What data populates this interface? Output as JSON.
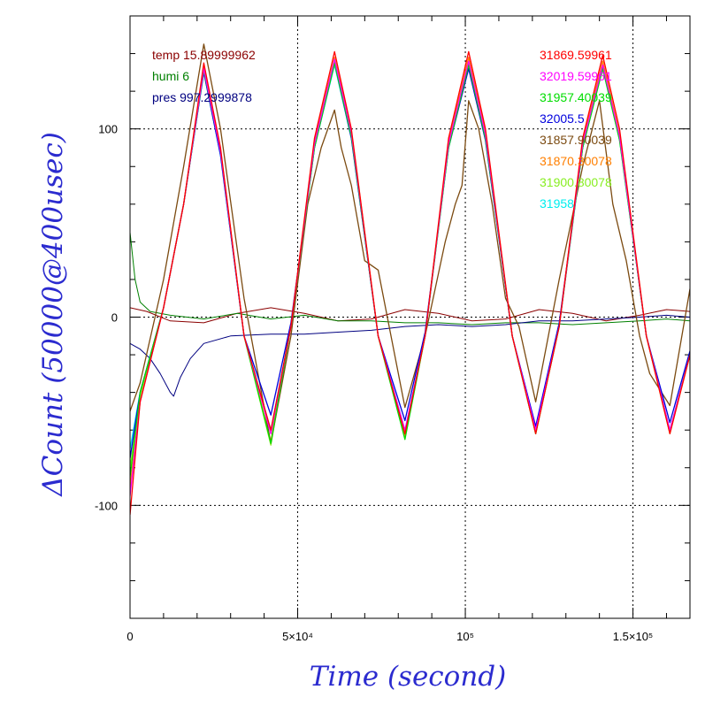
{
  "chart_data": {
    "type": "line",
    "xlabel": "Time (second)",
    "ylabel": "ΔCount (50000@400usec)",
    "xlim": [
      0,
      167000
    ],
    "ylim": [
      -160,
      160
    ],
    "grid": true,
    "x_ticks": [
      {
        "value": 0,
        "label": "0"
      },
      {
        "value": 50000,
        "label": "5×10⁴"
      },
      {
        "value": 100000,
        "label": "10⁵"
      },
      {
        "value": 150000,
        "label": "1.5×10⁵"
      }
    ],
    "y_ticks": [
      {
        "value": -100,
        "label": "-100"
      },
      {
        "value": 0,
        "label": "0"
      },
      {
        "value": 100,
        "label": "100"
      }
    ],
    "env_legend": [
      {
        "label": "temp 15.89999962",
        "color": "#8b0000"
      },
      {
        "label": "humi 6",
        "color": "#008000"
      },
      {
        "label": "pres 997.2999878",
        "color": "#000080"
      }
    ],
    "series": [
      {
        "name": "31869.59961",
        "color": "#ff0000",
        "points": [
          [
            0,
            -105
          ],
          [
            3000,
            -45
          ],
          [
            10000,
            5
          ],
          [
            16000,
            60
          ],
          [
            22000,
            135
          ],
          [
            27000,
            90
          ],
          [
            34000,
            -10
          ],
          [
            42000,
            -60
          ],
          [
            48000,
            -5
          ],
          [
            55000,
            95
          ],
          [
            61000,
            141
          ],
          [
            66000,
            100
          ],
          [
            74000,
            -10
          ],
          [
            82000,
            -62
          ],
          [
            88000,
            -10
          ],
          [
            95000,
            95
          ],
          [
            101000,
            141
          ],
          [
            106000,
            100
          ],
          [
            114000,
            -10
          ],
          [
            121000,
            -62
          ],
          [
            128000,
            -5
          ],
          [
            135000,
            95
          ],
          [
            141000,
            139
          ],
          [
            146000,
            100
          ],
          [
            154000,
            -10
          ],
          [
            161000,
            -62
          ],
          [
            167000,
            -20
          ]
        ]
      },
      {
        "name": "32019.59961",
        "color": "#ff00ff",
        "points": [
          [
            0,
            -95
          ],
          [
            3000,
            -45
          ],
          [
            10000,
            5
          ],
          [
            16000,
            60
          ],
          [
            22000,
            132
          ],
          [
            27000,
            88
          ],
          [
            34000,
            -10
          ],
          [
            42000,
            -62
          ],
          [
            48000,
            -5
          ],
          [
            55000,
            92
          ],
          [
            61000,
            137
          ],
          [
            66000,
            98
          ],
          [
            74000,
            -10
          ],
          [
            82000,
            -60
          ],
          [
            88000,
            -10
          ],
          [
            95000,
            92
          ],
          [
            101000,
            136
          ],
          [
            106000,
            97
          ],
          [
            114000,
            -10
          ],
          [
            121000,
            -60
          ],
          [
            128000,
            -5
          ],
          [
            135000,
            92
          ],
          [
            141000,
            134
          ],
          [
            146000,
            96
          ],
          [
            154000,
            -10
          ],
          [
            161000,
            -60
          ],
          [
            167000,
            -20
          ]
        ]
      },
      {
        "name": "31957.40039",
        "color": "#00dd00",
        "points": [
          [
            0,
            -85
          ],
          [
            3000,
            -40
          ],
          [
            10000,
            5
          ],
          [
            16000,
            60
          ],
          [
            22000,
            131
          ],
          [
            27000,
            88
          ],
          [
            34000,
            -10
          ],
          [
            42000,
            -67
          ],
          [
            48000,
            -5
          ],
          [
            55000,
            90
          ],
          [
            61000,
            135
          ],
          [
            66000,
            96
          ],
          [
            74000,
            -10
          ],
          [
            82000,
            -65
          ],
          [
            88000,
            -10
          ],
          [
            95000,
            90
          ],
          [
            101000,
            134
          ],
          [
            106000,
            95
          ],
          [
            114000,
            -10
          ],
          [
            121000,
            -62
          ],
          [
            128000,
            -5
          ],
          [
            135000,
            90
          ],
          [
            141000,
            132
          ],
          [
            146000,
            94
          ],
          [
            154000,
            -10
          ],
          [
            161000,
            -60
          ],
          [
            167000,
            -20
          ]
        ]
      },
      {
        "name": "32005.5",
        "color": "#0000dd",
        "points": [
          [
            0,
            -75
          ],
          [
            3000,
            -40
          ],
          [
            10000,
            5
          ],
          [
            16000,
            60
          ],
          [
            22000,
            130
          ],
          [
            27000,
            86
          ],
          [
            34000,
            -10
          ],
          [
            42000,
            -52
          ],
          [
            48000,
            -3
          ],
          [
            55000,
            90
          ],
          [
            61000,
            135
          ],
          [
            66000,
            95
          ],
          [
            74000,
            -10
          ],
          [
            82000,
            -55
          ],
          [
            88000,
            -8
          ],
          [
            95000,
            90
          ],
          [
            101000,
            132
          ],
          [
            106000,
            94
          ],
          [
            114000,
            -10
          ],
          [
            121000,
            -58
          ],
          [
            128000,
            -3
          ],
          [
            135000,
            90
          ],
          [
            141000,
            133
          ],
          [
            146000,
            95
          ],
          [
            154000,
            -10
          ],
          [
            161000,
            -56
          ],
          [
            167000,
            -18
          ]
        ]
      },
      {
        "name": "31857.90039",
        "color": "#7b4a10",
        "points": [
          [
            0,
            -50
          ],
          [
            3000,
            -35
          ],
          [
            10000,
            20
          ],
          [
            16000,
            80
          ],
          [
            22000,
            145
          ],
          [
            27000,
            100
          ],
          [
            34000,
            10
          ],
          [
            42000,
            -67
          ],
          [
            48000,
            -10
          ],
          [
            53000,
            60
          ],
          [
            57000,
            90
          ],
          [
            61000,
            110
          ],
          [
            63000,
            90
          ],
          [
            66000,
            70
          ],
          [
            70000,
            30
          ],
          [
            74000,
            25
          ],
          [
            82000,
            -48
          ],
          [
            88000,
            -10
          ],
          [
            94000,
            40
          ],
          [
            97000,
            60
          ],
          [
            99000,
            70
          ],
          [
            101000,
            115
          ],
          [
            104000,
            100
          ],
          [
            108000,
            60
          ],
          [
            112000,
            10
          ],
          [
            116000,
            -5
          ],
          [
            121000,
            -45
          ],
          [
            128000,
            20
          ],
          [
            135000,
            80
          ],
          [
            140000,
            115
          ],
          [
            144000,
            60
          ],
          [
            148000,
            30
          ],
          [
            152000,
            -10
          ],
          [
            155000,
            -30
          ],
          [
            161000,
            -47
          ],
          [
            167000,
            15
          ]
        ]
      },
      {
        "name": "31870.30078",
        "color": "#ff7f00",
        "points": [
          [
            0,
            -90
          ],
          [
            3000,
            -45
          ],
          [
            10000,
            5
          ],
          [
            16000,
            60
          ],
          [
            22000,
            133
          ],
          [
            27000,
            89
          ],
          [
            34000,
            -10
          ],
          [
            42000,
            -66
          ],
          [
            48000,
            -5
          ],
          [
            55000,
            93
          ],
          [
            61000,
            138
          ],
          [
            66000,
            99
          ],
          [
            74000,
            -10
          ],
          [
            82000,
            -63
          ],
          [
            88000,
            -10
          ],
          [
            95000,
            93
          ],
          [
            101000,
            138
          ],
          [
            106000,
            98
          ],
          [
            114000,
            -10
          ],
          [
            121000,
            -61
          ],
          [
            128000,
            -5
          ],
          [
            135000,
            93
          ],
          [
            141000,
            136
          ],
          [
            146000,
            97
          ],
          [
            154000,
            -10
          ],
          [
            161000,
            -61
          ],
          [
            167000,
            -20
          ]
        ]
      },
      {
        "name": "31900.80078",
        "color": "#88ee22",
        "points": [
          [
            0,
            -80
          ],
          [
            3000,
            -42
          ],
          [
            10000,
            5
          ],
          [
            16000,
            60
          ],
          [
            22000,
            131
          ],
          [
            27000,
            87
          ],
          [
            34000,
            -10
          ],
          [
            42000,
            -68
          ],
          [
            48000,
            -5
          ],
          [
            55000,
            91
          ],
          [
            61000,
            136
          ],
          [
            66000,
            97
          ],
          [
            74000,
            -10
          ],
          [
            82000,
            -64
          ],
          [
            88000,
            -10
          ],
          [
            95000,
            91
          ],
          [
            101000,
            135
          ],
          [
            106000,
            96
          ],
          [
            114000,
            -10
          ],
          [
            121000,
            -62
          ],
          [
            128000,
            -5
          ],
          [
            135000,
            91
          ],
          [
            141000,
            133
          ],
          [
            146000,
            95
          ],
          [
            154000,
            -10
          ],
          [
            161000,
            -62
          ],
          [
            167000,
            -20
          ]
        ]
      },
      {
        "name": "31958",
        "color": "#00eeee",
        "points": [
          [
            0,
            -70
          ],
          [
            3000,
            -40
          ],
          [
            10000,
            5
          ],
          [
            16000,
            60
          ],
          [
            22000,
            130
          ],
          [
            27000,
            86
          ],
          [
            34000,
            -10
          ],
          [
            42000,
            -60
          ],
          [
            48000,
            -5
          ],
          [
            55000,
            90
          ],
          [
            61000,
            134
          ],
          [
            66000,
            95
          ],
          [
            74000,
            -10
          ],
          [
            82000,
            -60
          ],
          [
            88000,
            -10
          ],
          [
            95000,
            90
          ],
          [
            101000,
            133
          ],
          [
            106000,
            94
          ],
          [
            114000,
            -10
          ],
          [
            121000,
            -60
          ],
          [
            128000,
            -5
          ],
          [
            135000,
            90
          ],
          [
            141000,
            132
          ],
          [
            146000,
            94
          ],
          [
            154000,
            -10
          ],
          [
            161000,
            -60
          ],
          [
            167000,
            -20
          ]
        ]
      }
    ],
    "env_series": [
      {
        "name": "temp",
        "color": "#8b0000",
        "points": [
          [
            0,
            5
          ],
          [
            5000,
            3
          ],
          [
            12000,
            -2
          ],
          [
            22000,
            -3
          ],
          [
            32000,
            2
          ],
          [
            42000,
            5
          ],
          [
            52000,
            2
          ],
          [
            62000,
            -2
          ],
          [
            72000,
            -1
          ],
          [
            82000,
            4
          ],
          [
            92000,
            2
          ],
          [
            102000,
            -2
          ],
          [
            112000,
            -1
          ],
          [
            122000,
            4
          ],
          [
            132000,
            2
          ],
          [
            142000,
            -2
          ],
          [
            152000,
            1
          ],
          [
            160000,
            4
          ],
          [
            167000,
            3
          ]
        ]
      },
      {
        "name": "humi",
        "color": "#008000",
        "points": [
          [
            0,
            45
          ],
          [
            1500,
            20
          ],
          [
            3000,
            8
          ],
          [
            6000,
            3
          ],
          [
            12000,
            1
          ],
          [
            22000,
            -1
          ],
          [
            32000,
            2
          ],
          [
            42000,
            -1
          ],
          [
            52000,
            1
          ],
          [
            62000,
            -2
          ],
          [
            72000,
            -2
          ],
          [
            82000,
            -3
          ],
          [
            92000,
            -3
          ],
          [
            102000,
            -4
          ],
          [
            112000,
            -3
          ],
          [
            122000,
            -3
          ],
          [
            132000,
            -4
          ],
          [
            142000,
            -3
          ],
          [
            152000,
            -2
          ],
          [
            160000,
            -1
          ],
          [
            167000,
            -2
          ]
        ]
      },
      {
        "name": "pres",
        "color": "#000080",
        "points": [
          [
            0,
            -14
          ],
          [
            3000,
            -17
          ],
          [
            6000,
            -22
          ],
          [
            9000,
            -30
          ],
          [
            12000,
            -40
          ],
          [
            13000,
            -42
          ],
          [
            15000,
            -32
          ],
          [
            18000,
            -22
          ],
          [
            22000,
            -14
          ],
          [
            30000,
            -10
          ],
          [
            42000,
            -9
          ],
          [
            52000,
            -9
          ],
          [
            62000,
            -8
          ],
          [
            72000,
            -7
          ],
          [
            82000,
            -5
          ],
          [
            92000,
            -4
          ],
          [
            102000,
            -5
          ],
          [
            112000,
            -4
          ],
          [
            122000,
            -2
          ],
          [
            132000,
            -2
          ],
          [
            142000,
            -1
          ],
          [
            152000,
            0
          ],
          [
            160000,
            1
          ],
          [
            167000,
            0
          ]
        ]
      }
    ]
  }
}
